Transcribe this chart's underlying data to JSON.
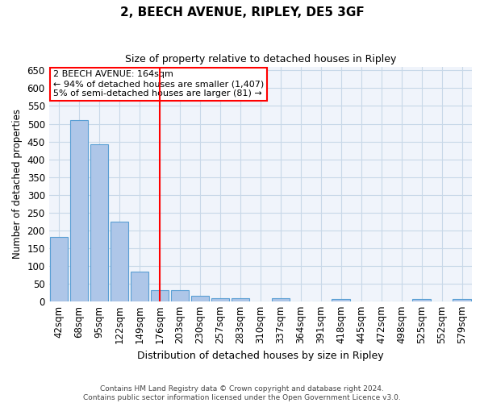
{
  "title": "2, BEECH AVENUE, RIPLEY, DE5 3GF",
  "subtitle": "Size of property relative to detached houses in Ripley",
  "xlabel": "Distribution of detached houses by size in Ripley",
  "ylabel": "Number of detached properties",
  "categories": [
    "42sqm",
    "68sqm",
    "95sqm",
    "122sqm",
    "149sqm",
    "176sqm",
    "203sqm",
    "230sqm",
    "257sqm",
    "283sqm",
    "310sqm",
    "337sqm",
    "364sqm",
    "391sqm",
    "418sqm",
    "445sqm",
    "472sqm",
    "498sqm",
    "525sqm",
    "552sqm",
    "579sqm"
  ],
  "values": [
    180,
    510,
    443,
    225,
    83,
    30,
    30,
    16,
    8,
    8,
    0,
    8,
    0,
    0,
    5,
    0,
    0,
    0,
    5,
    0,
    5
  ],
  "bar_color": "#aec6e8",
  "bar_edge_color": "#5a9fd4",
  "grid_color": "#c8d8e8",
  "background_color": "#f0f4fb",
  "red_line_x": 5,
  "annotation_line1": "2 BEECH AVENUE: 164sqm",
  "annotation_line2": "← 94% of detached houses are smaller (1,407)",
  "annotation_line3": "5% of semi-detached houses are larger (81) →",
  "ylim": [
    0,
    660
  ],
  "yticks": [
    0,
    50,
    100,
    150,
    200,
    250,
    300,
    350,
    400,
    450,
    500,
    550,
    600,
    650
  ],
  "footer_line1": "Contains HM Land Registry data © Crown copyright and database right 2024.",
  "footer_line2": "Contains public sector information licensed under the Open Government Licence v3.0."
}
